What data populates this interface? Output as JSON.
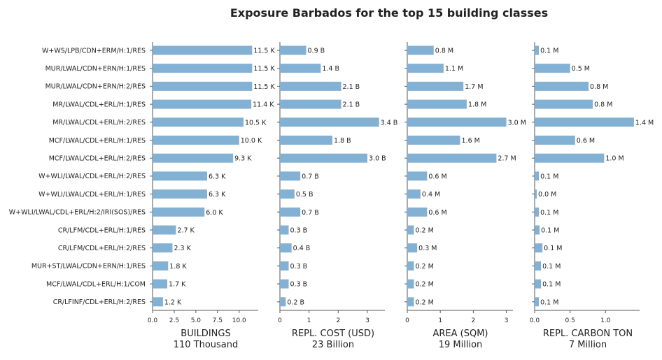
{
  "chart_data": {
    "type": "bar",
    "title": "Exposure Barbados for the top 15 building classes",
    "bar_color": "#82b1d4",
    "axis_color": "#555555",
    "categories": [
      "W+WS/LPB/CDN+ERM/H:1/RES",
      "MUR/LWAL/CDN+ERN/H:1/RES",
      "MUR/LWAL/CDN+ERN/H:2/RES",
      "MR/LWAL/CDL+ERL/H:1/RES",
      "MR/LWAL/CDL+ERL/H:2/RES",
      "MCF/LWAL/CDL+ERL/H:1/RES",
      "MCF/LWAL/CDL+ERL/H:2/RES",
      "W+WLI/LWAL/CDL+ERL/H:2/RES",
      "W+WLI/LWAL/CDL+ERL/H:1/RES",
      "W+WLI/LWAL/CDL+ERL/H:2/IRI(SOS)/RES",
      "CR/LFM/CDL+ERL/H:1/RES",
      "CR/LFM/CDL+ERL/H:2/RES",
      "MUR+ST/LWAL/CDN+ERN/H:1/RES",
      "MCF/LWAL/CDL+ERL/H:1/COM",
      "CR/LFINF/CDL+ERL/H:2/RES"
    ],
    "panels": [
      {
        "xlabel": "BUILDINGS",
        "total": "110 Thousand",
        "xlim": [
          0,
          12.2
        ],
        "ticks": [
          0,
          2.5,
          5,
          7.5,
          10
        ],
        "tick_labels": [
          "0.0",
          "2.5",
          "5.0",
          "7.5",
          "10.0"
        ],
        "values": [
          11.5,
          11.5,
          11.5,
          11.4,
          10.5,
          10.0,
          9.3,
          6.3,
          6.3,
          6.0,
          2.7,
          2.3,
          1.8,
          1.7,
          1.2
        ],
        "labels": [
          "11.5 K",
          "11.5 K",
          "11.5 K",
          "11.4 K",
          "10.5 K",
          "10.0 K",
          "9.3 K",
          "6.3 K",
          "6.3 K",
          "6.0 K",
          "2.7 K",
          "2.3 K",
          "1.8 K",
          "1.7 K",
          "1.2 K"
        ]
      },
      {
        "xlabel": "REPL. COST (USD)",
        "total": "23 Billion",
        "xlim": [
          0,
          3.6
        ],
        "ticks": [
          0,
          1,
          2,
          3
        ],
        "tick_labels": [
          "0",
          "1",
          "2",
          "3"
        ],
        "values": [
          0.9,
          1.4,
          2.1,
          2.1,
          3.4,
          1.8,
          3.0,
          0.7,
          0.5,
          0.7,
          0.3,
          0.4,
          0.3,
          0.3,
          0.2
        ],
        "labels": [
          "0.9 B",
          "1.4 B",
          "2.1 B",
          "2.1 B",
          "3.4 B",
          "1.8 B",
          "3.0 B",
          "0.7 B",
          "0.5 B",
          "0.7 B",
          "0.3 B",
          "0.4 B",
          "0.3 B",
          "0.3 B",
          "0.2 B"
        ]
      },
      {
        "xlabel": "AREA (SQM)",
        "total": "19 Million",
        "xlim": [
          0,
          3.2
        ],
        "ticks": [
          0,
          1,
          2,
          3
        ],
        "tick_labels": [
          "0",
          "1",
          "2",
          "3"
        ],
        "values": [
          0.8,
          1.1,
          1.7,
          1.8,
          3.0,
          1.6,
          2.7,
          0.6,
          0.4,
          0.6,
          0.2,
          0.3,
          0.2,
          0.2,
          0.2
        ],
        "labels": [
          "0.8 M",
          "1.1 M",
          "1.7 M",
          "1.8 M",
          "3.0 M",
          "1.6 M",
          "2.7 M",
          "0.6 M",
          "0.4 M",
          "0.6 M",
          "0.2 M",
          "0.3 M",
          "0.2 M",
          "0.2 M",
          "0.2 M"
        ]
      },
      {
        "xlabel": "REPL. CARBON TON",
        "total": "7 Million",
        "xlim": [
          0,
          1.48
        ],
        "ticks": [
          0,
          0.5,
          1.0
        ],
        "tick_labels": [
          "0.0",
          "0.5",
          "1.0"
        ],
        "values": [
          0.06,
          0.5,
          0.76,
          0.82,
          1.4,
          0.57,
          0.98,
          0.06,
          0.03,
          0.06,
          0.07,
          0.11,
          0.09,
          0.09,
          0.06
        ],
        "labels": [
          "0.1 M",
          "0.5 M",
          "0.8 M",
          "0.8 M",
          "1.4 M",
          "0.6 M",
          "1.0 M",
          "0.1 M",
          "0.0 M",
          "0.1 M",
          "0.1 M",
          "0.1 M",
          "0.1 M",
          "0.1 M",
          "0.1 M"
        ]
      }
    ]
  }
}
